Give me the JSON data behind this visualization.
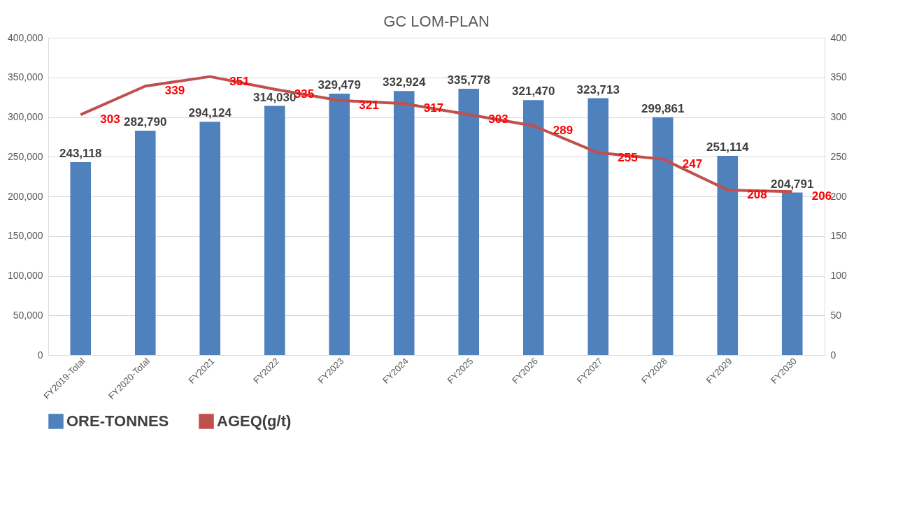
{
  "chart_data": {
    "type": "bar",
    "title": "GC LOM-PLAN",
    "categories": [
      "FY2019-Total",
      "FY2020-Total",
      "FY2021",
      "FY2022",
      "FY2023",
      "FY2024",
      "FY2025",
      "FY2026",
      "FY2027",
      "FY2028",
      "FY2029",
      "FY2030"
    ],
    "series": [
      {
        "name": "ORE-TONNES",
        "color": "#4f81bd",
        "values": [
          243118,
          282790,
          294124,
          314030,
          329479,
          332924,
          335778,
          321470,
          323713,
          299861,
          251114,
          204791
        ],
        "value_labels": [
          "243,118",
          "282,790",
          "294,124",
          "314,030",
          "329,479",
          "332,924",
          "335,778",
          "321,470",
          "323,713",
          "299,861",
          "251,114",
          "204,791"
        ]
      },
      {
        "name": "AGEQ(g/t)",
        "color": "#c0504d",
        "type": "line",
        "axis": "y2",
        "values": [
          303,
          339,
          351,
          335,
          321,
          317,
          303,
          289,
          255,
          247,
          208,
          206
        ]
      }
    ],
    "ylim": [
      0,
      400000
    ],
    "yticks": [
      {
        "value": 0,
        "label": "0"
      },
      {
        "value": 50000,
        "label": "50,000"
      },
      {
        "value": 100000,
        "label": "100,000"
      },
      {
        "value": 150000,
        "label": "150,000"
      },
      {
        "value": 200000,
        "label": "200,000"
      },
      {
        "value": 250000,
        "label": "250,000"
      },
      {
        "value": 300000,
        "label": "300,000"
      },
      {
        "value": 350000,
        "label": "350,000"
      },
      {
        "value": 400000,
        "label": "400,000"
      }
    ],
    "y2lim": [
      0,
      400
    ],
    "y2ticks": [
      0,
      50,
      100,
      150,
      200,
      250,
      300,
      350,
      400
    ],
    "grid": "y",
    "legend": "bottom",
    "data_labels": true,
    "marker": "none",
    "line_style": "solid"
  }
}
